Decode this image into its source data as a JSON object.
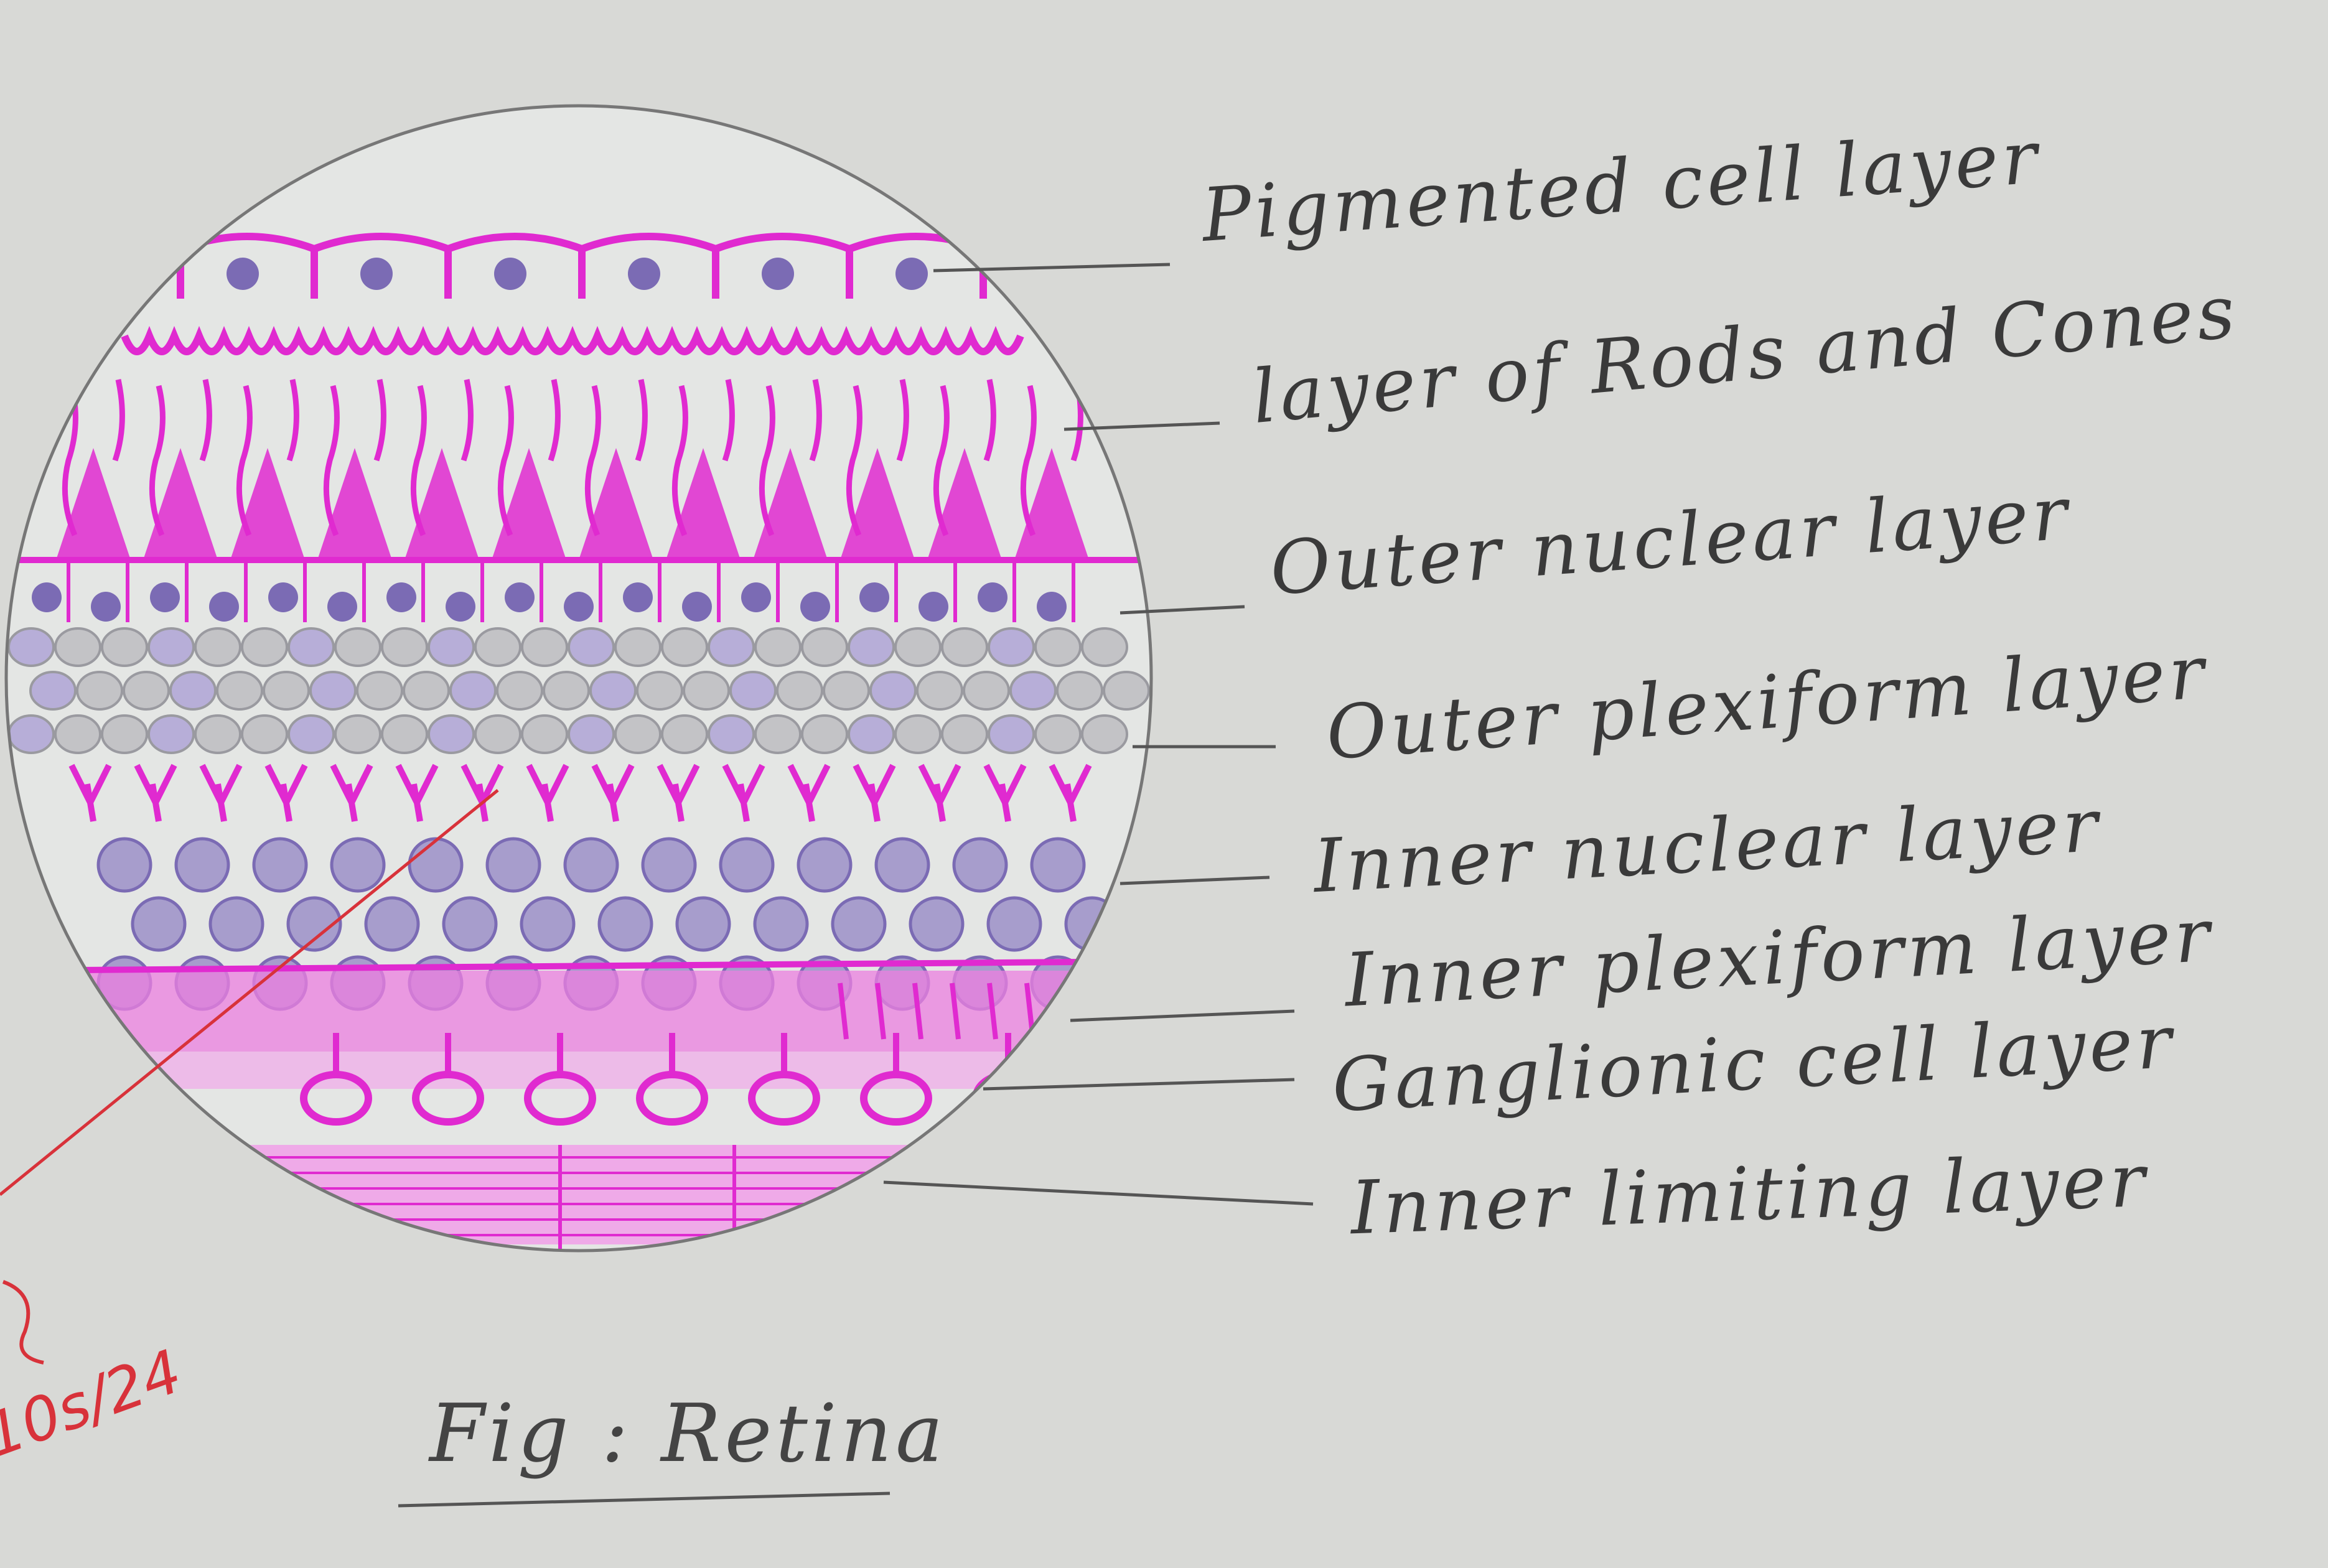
{
  "figure": {
    "caption": "Fig : Retina",
    "labels": [
      "Pigmented cell layer",
      "layer of Rods and Cones",
      "Outer nuclear layer",
      "Outer plexiform layer",
      "Inner nuclear layer",
      "Inner plexiform layer",
      "Ganglionic cell layer",
      "Inner limiting layer"
    ],
    "signature": "10s/24"
  },
  "colors": {
    "paper": "#d8d9d6",
    "magenta": "#e02ad0",
    "purple": "#7b6bb4",
    "pencil": "#555555",
    "red_ink": "#d8323a"
  }
}
